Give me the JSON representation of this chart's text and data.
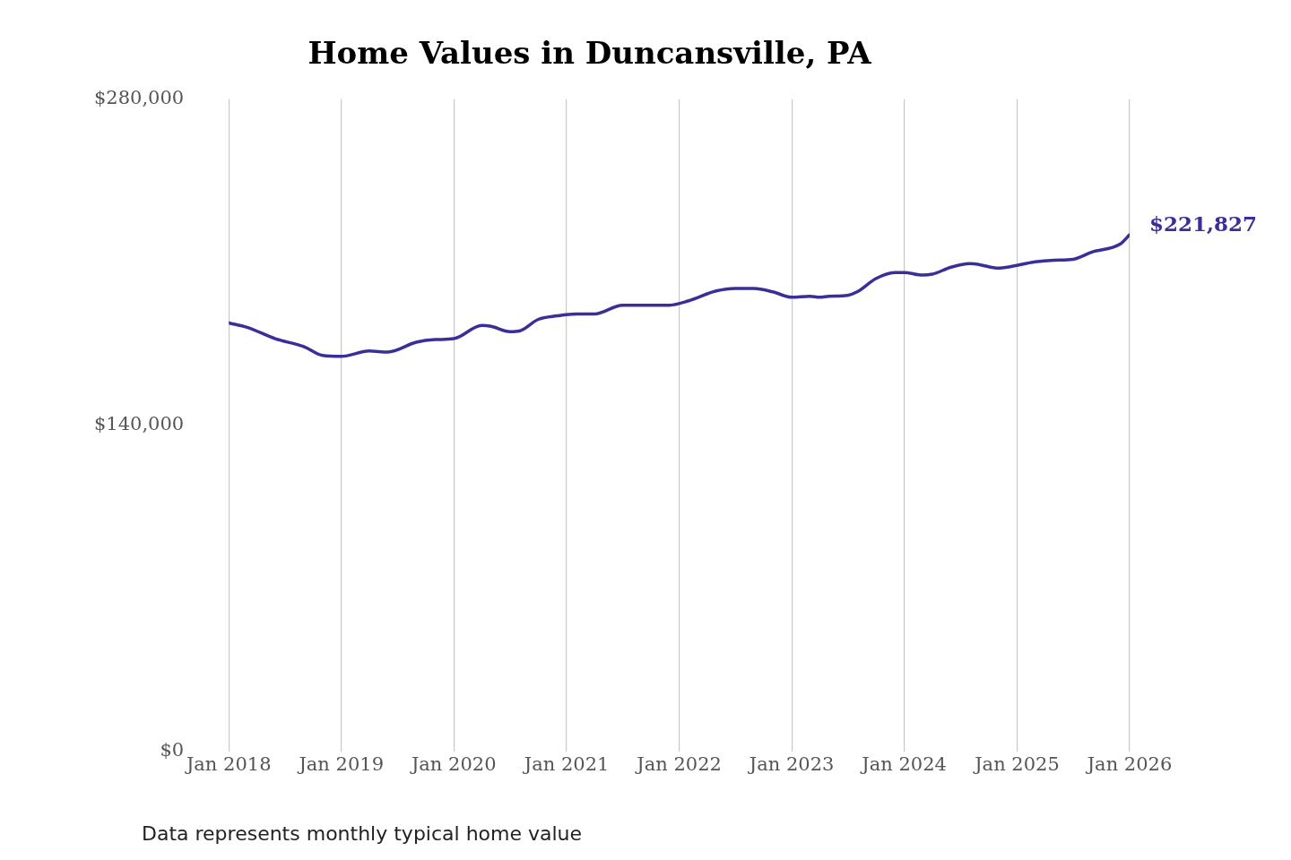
{
  "chart_data": {
    "type": "line",
    "title": "Home Values in Duncansville, PA",
    "x": [
      "2018-01",
      "2018-03",
      "2018-06",
      "2018-09",
      "2018-11",
      "2019-01",
      "2019-04",
      "2019-06",
      "2019-09",
      "2019-11",
      "2020-01",
      "2020-04",
      "2020-05",
      "2020-07",
      "2020-08",
      "2020-10",
      "2020-12",
      "2021-02",
      "2021-04",
      "2021-07",
      "2021-09",
      "2021-12",
      "2022-02",
      "2022-05",
      "2022-07",
      "2022-09",
      "2022-11",
      "2023-01",
      "2023-03",
      "2023-04",
      "2023-05",
      "2023-07",
      "2023-08",
      "2023-10",
      "2023-12",
      "2024-01",
      "2024-03",
      "2024-04",
      "2024-06",
      "2024-08",
      "2024-09",
      "2024-11",
      "2024-12",
      "2025-03",
      "2025-05",
      "2025-07",
      "2025-09",
      "2025-12",
      "2026-01"
    ],
    "series": [
      {
        "color": "#3a2f99",
        "values": [
          184000,
          182100,
          177200,
          173800,
          170000,
          169600,
          171900,
          171500,
          175700,
          176800,
          177200,
          182900,
          182500,
          180200,
          180500,
          185500,
          187000,
          187800,
          187800,
          191600,
          191600,
          191600,
          193500,
          197700,
          198800,
          198800,
          197300,
          195000,
          195400,
          195000,
          195400,
          195800,
          197300,
          203000,
          205600,
          205600,
          204500,
          204900,
          207900,
          209400,
          209000,
          207500,
          207900,
          210200,
          210900,
          211300,
          214400,
          217800,
          221827
        ],
        "value_labels": [
          null,
          null,
          null,
          null,
          null,
          null,
          null,
          null,
          null,
          null,
          null,
          null,
          null,
          null,
          null,
          null,
          null,
          null,
          null,
          null,
          null,
          null,
          null,
          null,
          null,
          null,
          null,
          null,
          null,
          null,
          null,
          null,
          null,
          null,
          null,
          null,
          null,
          null,
          null,
          null,
          null,
          null,
          null,
          null,
          null,
          null,
          null,
          null,
          "$221,827"
        ]
      }
    ],
    "xlim": [
      "2018-01",
      "2026-01"
    ],
    "xticks": [
      {
        "value": "2018-01",
        "label": "Jan 2018"
      },
      {
        "value": "2019-01",
        "label": "Jan 2019"
      },
      {
        "value": "2020-01",
        "label": "Jan 2020"
      },
      {
        "value": "2021-01",
        "label": "Jan 2021"
      },
      {
        "value": "2022-01",
        "label": "Jan 2022"
      },
      {
        "value": "2023-01",
        "label": "Jan 2023"
      },
      {
        "value": "2024-01",
        "label": "Jan 2024"
      },
      {
        "value": "2025-01",
        "label": "Jan 2025"
      },
      {
        "value": "2026-01",
        "label": "Jan 2026"
      }
    ],
    "ylim": [
      0,
      280000
    ],
    "yticks": [
      {
        "value": 0,
        "label": "$0"
      },
      {
        "value": 140000,
        "label": "$140,000"
      },
      {
        "value": 280000,
        "label": "$280,000"
      }
    ],
    "grid": "x",
    "marker": "none",
    "line_style": "solid",
    "legend": false,
    "annotations": [
      "Data represents monthly typical home value"
    ]
  }
}
